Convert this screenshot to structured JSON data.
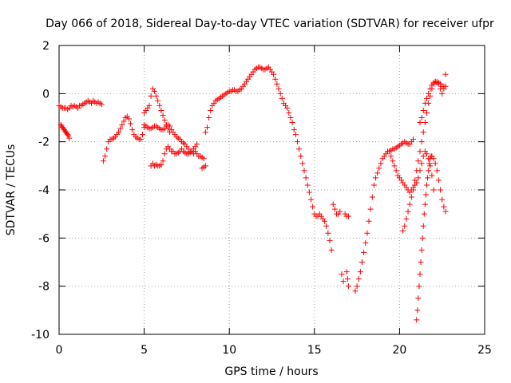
{
  "chart_data": {
    "type": "scatter",
    "title": "Day 066 of 2018, Sidereal Day-to-day VTEC variation (SDTVAR) for receiver ufpr",
    "xlabel": "GPS time / hours",
    "ylabel": "SDTVAR / TECUs",
    "xlim": [
      0,
      25
    ],
    "ylim": [
      -10,
      2
    ],
    "x_ticks": [
      0,
      5,
      10,
      15,
      20,
      25
    ],
    "y_ticks": [
      -10,
      -8,
      -6,
      -4,
      -2,
      0,
      2
    ],
    "x_tick_labels": [
      "0",
      "5",
      "10",
      "15",
      "20",
      "25"
    ],
    "y_tick_labels": [
      "-10",
      "-8",
      "-6",
      "-4",
      "-2",
      "0",
      "2"
    ],
    "grid": true,
    "marker": "plus",
    "color": "#ff0000",
    "series": [
      {
        "x": [
          0.0,
          0.1,
          0.2,
          0.3,
          0.4,
          0.5,
          0.6,
          0.7,
          0.8,
          0.9,
          1.0,
          1.1,
          1.2,
          1.3,
          1.4,
          1.5,
          1.6,
          1.7,
          1.8,
          1.9,
          2.0,
          2.1,
          2.2,
          2.3,
          2.4,
          2.5
        ],
        "y": [
          -0.5,
          -0.55,
          -0.6,
          -0.6,
          -0.6,
          -0.65,
          -0.6,
          -0.5,
          -0.55,
          -0.5,
          -0.55,
          -0.6,
          -0.5,
          -0.5,
          -0.45,
          -0.4,
          -0.35,
          -0.3,
          -0.35,
          -0.4,
          -0.3,
          -0.35,
          -0.4,
          -0.35,
          -0.4,
          -0.45
        ]
      },
      {
        "x": [
          0.1,
          0.15,
          0.2,
          0.25,
          0.3,
          0.35,
          0.4,
          0.45,
          0.5,
          0.55,
          0.6
        ],
        "y": [
          -1.3,
          -1.35,
          -1.4,
          -1.45,
          -1.5,
          -1.55,
          -1.6,
          -1.65,
          -1.7,
          -1.75,
          -1.85
        ]
      },
      {
        "x": [
          2.6,
          2.7,
          2.8,
          2.9,
          3.0,
          3.1,
          3.2,
          3.3,
          3.4,
          3.5,
          3.6,
          3.7,
          3.8,
          3.9,
          4.0,
          4.1,
          4.2,
          4.3,
          4.4,
          4.5,
          4.6,
          4.7,
          4.8,
          4.9,
          5.0
        ],
        "y": [
          -2.8,
          -2.6,
          -2.3,
          -2.0,
          -1.9,
          -1.9,
          -1.85,
          -1.8,
          -1.7,
          -1.6,
          -1.45,
          -1.3,
          -1.15,
          -1.0,
          -0.95,
          -1.05,
          -1.25,
          -1.5,
          -1.7,
          -1.8,
          -1.85,
          -1.9,
          -1.9,
          -1.7,
          -1.4
        ]
      },
      {
        "x": [
          5.0,
          5.1,
          5.2,
          5.3,
          5.4,
          5.5,
          5.6,
          5.7,
          5.8,
          5.9,
          6.0,
          6.1,
          6.2,
          6.3,
          6.4,
          6.5,
          6.6,
          6.7,
          6.8,
          6.9,
          7.0,
          7.1,
          7.2,
          7.3,
          7.4,
          7.5,
          7.6,
          7.7,
          7.8,
          7.9,
          8.0,
          8.1,
          8.2,
          8.3,
          8.4,
          8.5
        ],
        "y": [
          -1.3,
          -1.35,
          -1.4,
          -1.45,
          -1.45,
          -1.4,
          -1.35,
          -1.35,
          -1.4,
          -1.45,
          -1.5,
          -1.5,
          -1.45,
          -1.35,
          -1.3,
          -1.35,
          -1.5,
          -1.6,
          -1.7,
          -1.8,
          -1.85,
          -1.9,
          -2.0,
          -2.05,
          -2.1,
          -2.2,
          -2.3,
          -2.4,
          -2.4,
          -2.5,
          -2.4,
          -2.5,
          -2.6,
          -2.6,
          -2.65,
          -2.7
        ]
      },
      {
        "x": [
          5.0,
          5.1,
          5.2,
          5.3,
          5.4,
          5.5,
          5.6,
          5.7,
          5.8,
          5.9,
          6.0,
          6.1,
          6.2,
          6.3,
          6.4,
          6.5
        ],
        "y": [
          -0.8,
          -0.7,
          -0.6,
          -0.5,
          -0.1,
          0.2,
          0.1,
          -0.1,
          -0.3,
          -0.5,
          -0.7,
          -0.9,
          -1.1,
          -1.3,
          -1.45,
          -1.6
        ]
      },
      {
        "x": [
          5.4,
          5.5,
          5.6,
          5.7,
          5.8,
          5.9,
          6.0,
          6.1,
          6.2,
          6.3,
          6.4,
          6.5,
          6.6,
          6.7,
          6.8,
          6.9,
          7.0,
          7.1,
          7.2,
          7.3,
          7.4,
          7.5,
          7.6,
          7.7,
          7.8,
          7.9,
          8.0,
          8.1
        ],
        "y": [
          -3.0,
          -2.9,
          -3.0,
          -2.95,
          -3.0,
          -3.0,
          -2.95,
          -2.8,
          -2.5,
          -2.3,
          -2.2,
          -2.3,
          -2.4,
          -2.4,
          -2.5,
          -2.5,
          -2.45,
          -2.4,
          -2.3,
          -2.4,
          -2.45,
          -2.5,
          -2.5,
          -2.45,
          -2.4,
          -2.3,
          -2.2,
          -2.1
        ]
      },
      {
        "x": [
          8.4,
          8.5,
          8.6
        ],
        "y": [
          -3.1,
          -3.05,
          -3.0
        ]
      },
      {
        "x": [
          8.6,
          8.7,
          8.8,
          8.9,
          9.0,
          9.1,
          9.2,
          9.3,
          9.4,
          9.5,
          9.6,
          9.7,
          9.8,
          9.9,
          10.0,
          10.1,
          10.2,
          10.3,
          10.4,
          10.5,
          10.6,
          10.7,
          10.8,
          10.9,
          11.0,
          11.1,
          11.2,
          11.3,
          11.4,
          11.5,
          11.6,
          11.7,
          11.8,
          11.9,
          12.0,
          12.1,
          12.2,
          12.3,
          12.4,
          12.5,
          12.6,
          12.7,
          12.8,
          12.9,
          13.0,
          13.1,
          13.2,
          13.3,
          13.4,
          13.5,
          13.6,
          13.7,
          13.8,
          13.9,
          14.0,
          14.1,
          14.2,
          14.3,
          14.4,
          14.5,
          14.6,
          14.7,
          14.8,
          14.9,
          15.0,
          15.1,
          15.2,
          15.3,
          15.4,
          15.5,
          15.6,
          15.7,
          15.8,
          15.9,
          16.0,
          16.1,
          16.2,
          16.3,
          16.4,
          16.5,
          16.6,
          16.7,
          16.8,
          16.9,
          17.0
        ],
        "y": [
          -1.6,
          -1.4,
          -1.0,
          -0.7,
          -0.5,
          -0.4,
          -0.3,
          -0.25,
          -0.2,
          -0.15,
          -0.1,
          -0.05,
          0.0,
          0.05,
          0.1,
          0.1,
          0.15,
          0.15,
          0.1,
          0.1,
          0.15,
          0.2,
          0.3,
          0.4,
          0.5,
          0.6,
          0.7,
          0.8,
          0.9,
          1.0,
          1.05,
          1.1,
          1.1,
          1.05,
          1.0,
          1.0,
          1.05,
          1.1,
          1.0,
          0.9,
          0.8,
          0.6,
          0.4,
          0.2,
          0.0,
          -0.2,
          -0.4,
          -0.5,
          -0.6,
          -0.8,
          -1.0,
          -1.2,
          -1.5,
          -1.7,
          -2.0,
          -2.3,
          -2.6,
          -2.9,
          -3.2,
          -3.5,
          -3.8,
          -4.1,
          -4.4,
          -4.7,
          -5.0,
          -5.1,
          -5.1,
          -5.0,
          -5.1,
          -5.2,
          -5.3,
          -5.5,
          -5.8,
          -6.1,
          -6.5,
          -4.6,
          -4.8,
          -5.0,
          -5.0,
          -4.9,
          -7.5,
          -7.8,
          -5.0,
          -5.1,
          -5.1
        ]
      },
      {
        "x": [
          16.9,
          16.95,
          17.0
        ],
        "y": [
          -7.4,
          -7.7,
          -8.0
        ]
      },
      {
        "x": [
          17.4,
          17.5,
          17.6,
          17.7,
          17.8,
          17.9,
          18.0,
          18.1,
          18.2,
          18.3,
          18.4,
          18.5,
          18.6,
          18.7,
          18.8,
          18.9,
          19.0,
          19.1,
          19.2,
          19.3,
          19.4,
          19.5,
          19.6,
          19.7,
          19.8,
          19.9,
          20.0,
          20.1,
          20.2,
          20.3,
          20.4,
          20.5,
          20.6,
          20.7,
          20.8
        ],
        "y": [
          -8.2,
          -8.0,
          -7.7,
          -7.4,
          -7.0,
          -6.6,
          -6.2,
          -5.8,
          -5.3,
          -4.8,
          -4.3,
          -3.8,
          -3.5,
          -3.3,
          -3.1,
          -2.9,
          -2.7,
          -2.6,
          -2.5,
          -2.4,
          -2.4,
          -2.35,
          -2.3,
          -2.3,
          -2.25,
          -2.2,
          -2.15,
          -2.1,
          -2.05,
          -2.0,
          -2.05,
          -2.1,
          -2.1,
          -2.0,
          -1.9
        ]
      },
      {
        "x": [
          20.2,
          20.3,
          20.4,
          20.5,
          20.6,
          20.7,
          20.8,
          20.9,
          21.0,
          21.1,
          21.2,
          21.3,
          21.4,
          21.5,
          21.6,
          21.7,
          21.8,
          21.9,
          22.0,
          22.1,
          22.2,
          22.3,
          22.4,
          22.5,
          22.6,
          22.7
        ],
        "y": [
          -5.7,
          -5.5,
          -5.2,
          -4.9,
          -4.6,
          -4.3,
          -4.0,
          -3.6,
          -3.2,
          -2.8,
          -2.4,
          -2.0,
          -1.6,
          -1.2,
          -0.8,
          -0.4,
          -0.1,
          0.2,
          0.4,
          0.5,
          0.45,
          0.4,
          0.2,
          0.0,
          0.3,
          0.8
        ]
      },
      {
        "x": [
          19.5,
          19.6,
          19.7,
          19.8,
          19.9,
          20.0,
          20.1,
          20.2,
          20.3,
          20.4,
          20.5,
          20.6,
          20.7,
          20.8,
          20.9,
          21.0,
          21.1,
          21.2,
          21.3,
          21.4,
          21.5,
          21.6,
          21.7,
          21.8,
          21.9,
          22.0
        ],
        "y": [
          -2.6,
          -2.8,
          -3.0,
          -3.2,
          -3.4,
          -3.5,
          -3.6,
          -3.7,
          -3.8,
          -3.9,
          -4.0,
          -4.1,
          -4.0,
          -3.9,
          -3.8,
          -3.7,
          -3.5,
          -3.2,
          -2.9,
          -2.6,
          -2.4,
          -2.5,
          -2.7,
          -3.0,
          -3.4,
          -4.0
        ]
      },
      {
        "x": [
          21.0,
          21.05,
          21.1,
          21.15,
          21.2,
          21.25,
          21.3,
          21.35,
          21.4,
          21.45,
          21.5,
          21.55,
          21.6,
          21.65,
          21.7,
          21.75,
          21.8,
          21.85,
          21.9,
          22.0,
          22.1,
          22.2,
          22.3,
          22.4,
          22.5,
          22.6,
          22.7
        ],
        "y": [
          -9.4,
          -9.0,
          -8.5,
          -8.0,
          -7.5,
          -7.0,
          -6.5,
          -6.0,
          -5.5,
          -5.0,
          -4.6,
          -4.2,
          -3.8,
          -3.5,
          -3.2,
          -2.9,
          -2.7,
          -2.6,
          -2.6,
          -2.7,
          -2.9,
          -3.2,
          -3.6,
          -4.0,
          -4.4,
          -4.7,
          -4.9
        ]
      },
      {
        "x": [
          21.2,
          21.3,
          21.4,
          21.5,
          21.6,
          21.7,
          21.8,
          21.9,
          22.0,
          22.1,
          22.2,
          22.3,
          22.4,
          22.5,
          22.6,
          22.7
        ],
        "y": [
          -1.2,
          -1.0,
          -0.7,
          -0.4,
          -0.2,
          0.0,
          0.2,
          0.35,
          0.45,
          0.5,
          0.5,
          0.45,
          0.4,
          0.3,
          0.2,
          0.3
        ]
      }
    ]
  }
}
